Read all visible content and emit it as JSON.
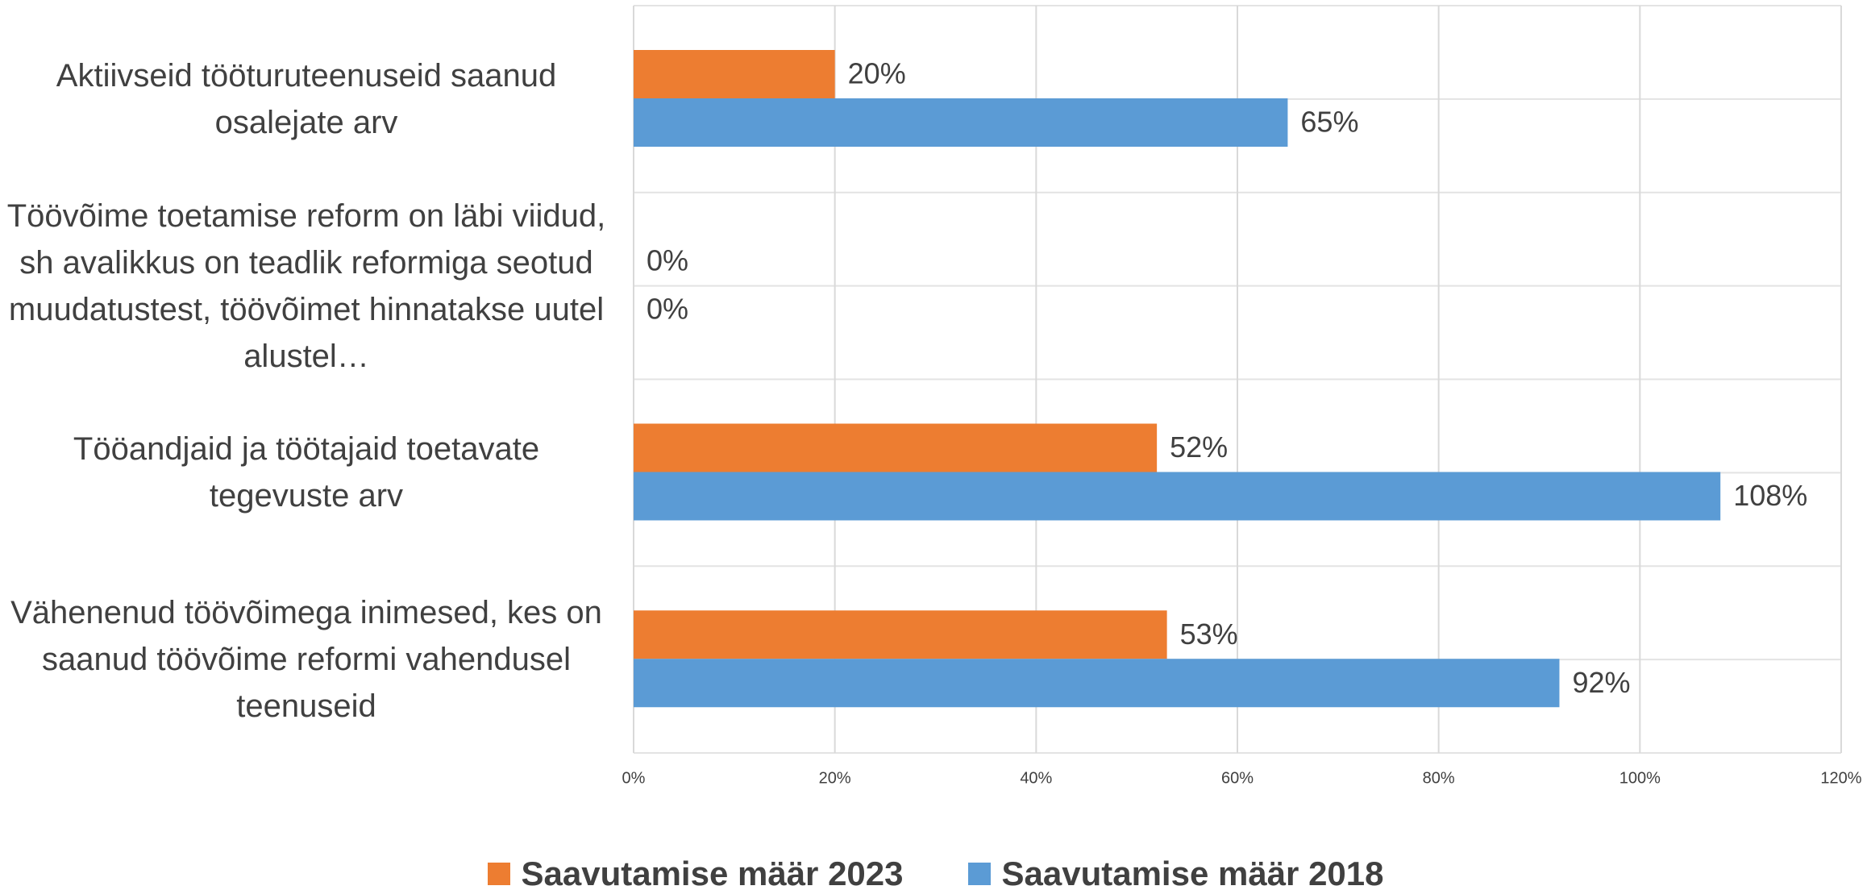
{
  "chart_data": {
    "type": "bar",
    "orientation": "horizontal",
    "categories": [
      "Aktiivseid tööturuteenuseid saanud osalejate arv",
      "Töövõime toetamise reform on läbi viidud, sh avalikkus on teadlik reformiga seotud muudatustest, töövõimet hinnatakse uutel alustel…",
      "Tööandjaid ja töötajaid toetavate tegevuste arv",
      "Vähenenud töövõimega inimesed, kes on saanud töövõime reformi vahendusel teenuseid"
    ],
    "series": [
      {
        "name": "Saavutamise määr 2023",
        "color": "#ed7d31",
        "values": [
          20,
          0,
          52,
          53
        ],
        "value_labels": [
          "20%",
          "0%",
          "52%",
          "53%"
        ]
      },
      {
        "name": "Saavutamise määr 2018",
        "color": "#5b9bd5",
        "values": [
          65,
          0,
          108,
          92
        ],
        "value_labels": [
          "65%",
          "0%",
          "108%",
          "92%"
        ]
      }
    ],
    "xlim": [
      0,
      120
    ],
    "xticks": [
      {
        "value": 0,
        "label": "0%"
      },
      {
        "value": 20,
        "label": "20%"
      },
      {
        "value": 40,
        "label": "40%"
      },
      {
        "value": 60,
        "label": "60%"
      },
      {
        "value": 80,
        "label": "80%"
      },
      {
        "value": 100,
        "label": "100%"
      },
      {
        "value": 120,
        "label": "120%"
      }
    ],
    "grid": true,
    "legend": "bottom"
  }
}
